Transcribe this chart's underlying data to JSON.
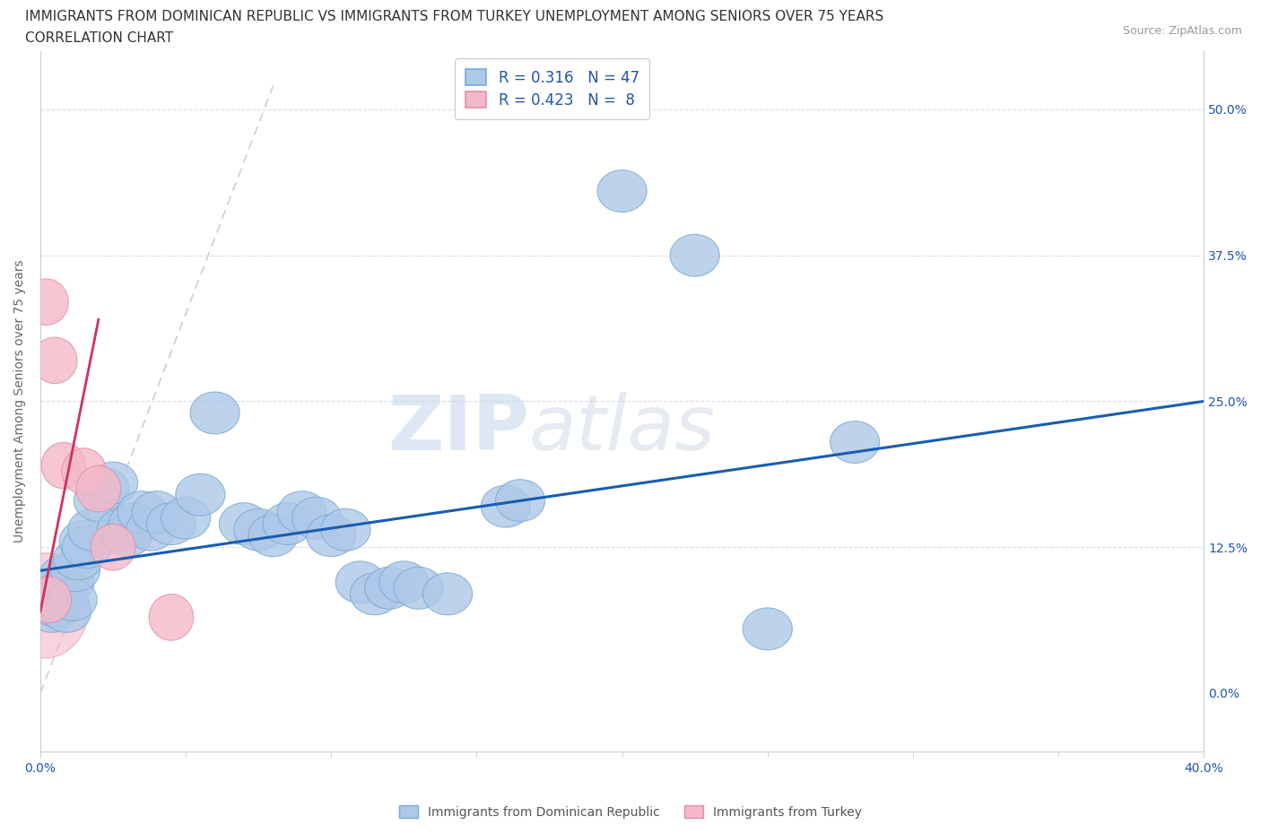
{
  "title_line1": "IMMIGRANTS FROM DOMINICAN REPUBLIC VS IMMIGRANTS FROM TURKEY UNEMPLOYMENT AMONG SENIORS OVER 75 YEARS",
  "title_line2": "CORRELATION CHART",
  "source": "Source: ZipAtlas.com",
  "ylabel": "Unemployment Among Seniors over 75 years",
  "yticks": [
    "50.0%",
    "37.5%",
    "25.0%",
    "12.5%",
    "0.0%"
  ],
  "ytick_vals": [
    50.0,
    37.5,
    25.0,
    12.5,
    0.0
  ],
  "xlim": [
    0.0,
    40.0
  ],
  "ylim": [
    -5.0,
    55.0
  ],
  "watermark_zip": "ZIP",
  "watermark_atlas": "atlas",
  "legend_blue_R": "0.316",
  "legend_blue_N": "47",
  "legend_pink_R": "0.423",
  "legend_pink_N": "8",
  "blue_color": "#adc8e8",
  "blue_edge": "#7aaad4",
  "pink_color": "#f4b8c8",
  "pink_edge": "#e090a8",
  "trendline_blue_color": "#1a5cb0",
  "trendline_pink_color": "#d03060",
  "diag_color": "#dcc8d0",
  "blue_scatter": [
    [
      0.3,
      8.0
    ],
    [
      0.4,
      7.0
    ],
    [
      0.5,
      7.5
    ],
    [
      0.6,
      9.0
    ],
    [
      0.7,
      8.5
    ],
    [
      0.8,
      10.0
    ],
    [
      0.9,
      7.0
    ],
    [
      1.0,
      9.5
    ],
    [
      1.1,
      8.0
    ],
    [
      1.2,
      10.5
    ],
    [
      1.3,
      11.5
    ],
    [
      1.5,
      13.0
    ],
    [
      1.6,
      12.5
    ],
    [
      1.8,
      14.0
    ],
    [
      2.0,
      16.5
    ],
    [
      2.2,
      17.5
    ],
    [
      2.5,
      18.0
    ],
    [
      2.8,
      14.0
    ],
    [
      3.0,
      13.5
    ],
    [
      3.2,
      14.5
    ],
    [
      3.5,
      15.5
    ],
    [
      3.8,
      14.0
    ],
    [
      4.0,
      15.5
    ],
    [
      4.5,
      14.5
    ],
    [
      5.0,
      15.0
    ],
    [
      5.5,
      17.0
    ],
    [
      6.0,
      24.0
    ],
    [
      7.0,
      14.5
    ],
    [
      7.5,
      14.0
    ],
    [
      8.0,
      13.5
    ],
    [
      8.5,
      14.5
    ],
    [
      9.0,
      15.5
    ],
    [
      9.5,
      15.0
    ],
    [
      10.0,
      13.5
    ],
    [
      10.5,
      14.0
    ],
    [
      11.0,
      9.5
    ],
    [
      11.5,
      8.5
    ],
    [
      12.0,
      9.0
    ],
    [
      12.5,
      9.5
    ],
    [
      13.0,
      9.0
    ],
    [
      14.0,
      8.5
    ],
    [
      16.0,
      16.0
    ],
    [
      16.5,
      16.5
    ],
    [
      20.0,
      43.0
    ],
    [
      22.5,
      37.5
    ],
    [
      25.0,
      5.5
    ],
    [
      28.0,
      21.5
    ]
  ],
  "pink_scatter": [
    [
      0.2,
      33.5
    ],
    [
      0.3,
      8.0
    ],
    [
      0.5,
      28.5
    ],
    [
      0.8,
      19.5
    ],
    [
      1.5,
      19.0
    ],
    [
      2.0,
      17.5
    ],
    [
      2.5,
      12.5
    ],
    [
      4.5,
      6.5
    ]
  ],
  "blue_trend_x": [
    0.0,
    40.0
  ],
  "blue_trend_y": [
    10.5,
    25.0
  ],
  "pink_trend_x": [
    0.0,
    2.0
  ],
  "pink_trend_y": [
    7.0,
    32.0
  ],
  "title_fontsize": 11,
  "source_fontsize": 9,
  "axis_color": "#2255aa",
  "tick_color": "#2255aa",
  "ylabel_color": "#666666",
  "grid_color": "#d8dde8",
  "spine_color": "#c8cdd8"
}
